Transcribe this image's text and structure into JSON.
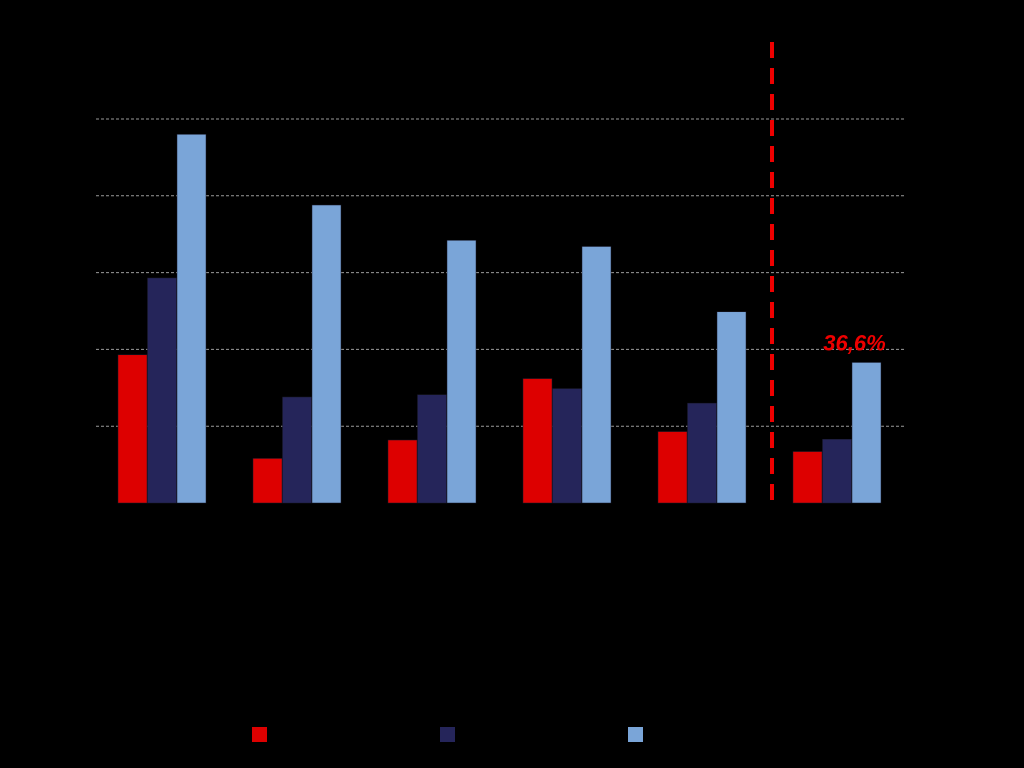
{
  "chart_data": {
    "type": "bar",
    "categories": [
      "",
      "",
      "",
      "",
      "",
      ""
    ],
    "series": [
      {
        "color": "#dd0000",
        "values": [
          1.93,
          0.58,
          0.82,
          1.62,
          0.93,
          0.67
        ]
      },
      {
        "color": "#25255a",
        "values": [
          2.93,
          1.38,
          1.41,
          1.49,
          1.3,
          0.83
        ]
      },
      {
        "color": "#7aa5d8",
        "values": [
          4.8,
          3.88,
          3.42,
          3.34,
          2.49,
          1.83
        ]
      }
    ],
    "ylim": [
      0,
      5
    ],
    "grid": true,
    "reference_line": {
      "style": "dashed",
      "color": "#ee0000",
      "position": "between-category-5-and-6"
    },
    "annotation": {
      "text": "36,6%",
      "color": "#ee0000",
      "series": 2,
      "category": 5
    },
    "legend": {
      "placement": "bottom"
    }
  }
}
